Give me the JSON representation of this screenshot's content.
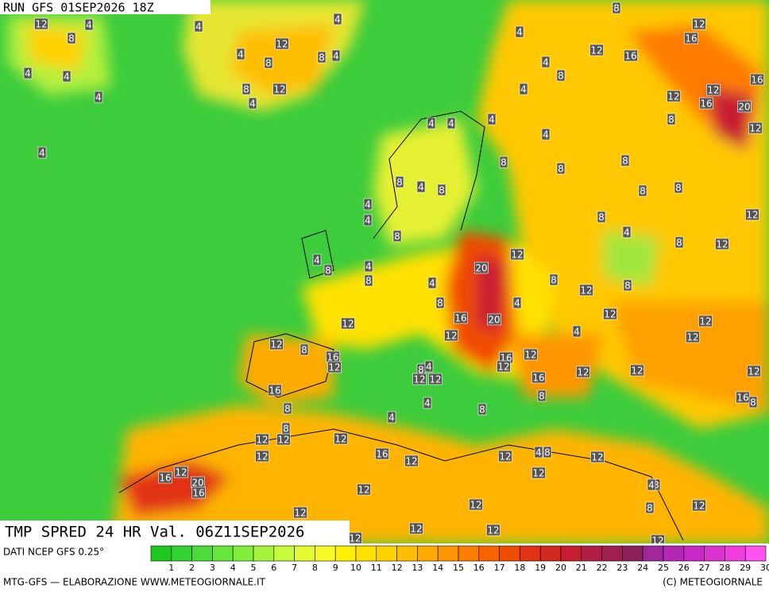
{
  "header": {
    "title": "RUN GFS 01SEP2026 18Z"
  },
  "caption": "TMP SPRED 24 HR Val. 06Z11SEP2026",
  "source": "DATI NCEP GFS 0.25°",
  "footer_left": "MTG-GFS — ELABORAZIONE WWW.METEOGIORNALE.IT",
  "footer_right": "(C) METEOGIORNALE",
  "legend": {
    "labels": [
      1,
      2,
      3,
      4,
      5,
      6,
      7,
      8,
      9,
      10,
      11,
      12,
      13,
      14,
      15,
      16,
      17,
      18,
      19,
      20,
      21,
      22,
      23,
      24,
      25,
      26,
      27,
      28,
      29,
      30
    ],
    "colors": [
      "#1ec81e",
      "#32d232",
      "#4bdc37",
      "#64e63c",
      "#82ef3c",
      "#a5f53c",
      "#c8fa3c",
      "#e6fa32",
      "#fafa28",
      "#fff000",
      "#ffe100",
      "#ffd200",
      "#ffbe00",
      "#ffaa00",
      "#ff9600",
      "#ff7d00",
      "#fa6400",
      "#f04b00",
      "#e13214",
      "#d2281e",
      "#c81e32",
      "#b41e46",
      "#a01e50",
      "#8c1e5a",
      "#a0289a",
      "#b428b4",
      "#c828c8",
      "#dc32d2",
      "#f03cdc",
      "#ff50f0"
    ]
  },
  "map_labels": [
    12,
    8,
    4,
    4,
    4,
    4,
    4,
    4,
    4,
    12,
    8,
    4,
    8,
    4,
    8,
    4,
    12,
    4,
    8,
    12,
    16,
    16,
    12,
    16,
    12,
    12,
    16,
    20,
    12,
    8,
    8,
    4,
    4,
    4,
    4,
    4,
    4,
    8,
    8,
    8,
    8,
    4,
    8,
    4,
    4,
    8,
    8,
    8,
    12,
    4,
    8,
    8,
    12,
    12,
    20,
    4,
    8,
    4,
    8,
    4,
    8,
    12,
    8,
    8,
    4,
    12,
    12,
    16,
    20,
    12,
    4,
    12,
    12,
    12,
    8,
    16,
    12,
    16,
    12,
    12,
    8,
    4,
    12,
    12,
    16,
    12,
    12,
    12,
    16,
    8,
    16,
    8,
    8,
    4,
    8,
    4,
    8,
    12,
    12,
    12,
    12,
    16,
    12,
    12,
    4,
    8,
    12,
    12,
    16,
    20,
    16,
    12,
    8,
    4,
    12,
    12,
    12,
    8,
    12,
    12,
    12,
    12,
    12
  ]
}
